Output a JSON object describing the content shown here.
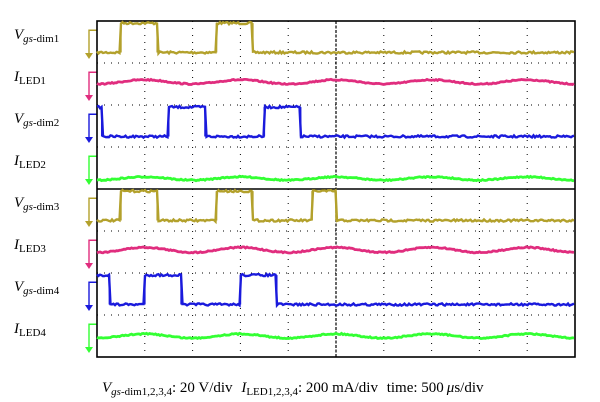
{
  "chart_data": {
    "type": "line",
    "display": "oscilloscope",
    "grid": true,
    "x_divisions": 10,
    "y_divisions": 8,
    "time_per_div": "500 μs/div",
    "caption": {
      "v_base": "V",
      "v_sub_italic": "gs",
      "v_sub_rest": "-dim1,2,3,4",
      "v_scale": ": 20 V/div",
      "i_base": "I",
      "i_sub": "LED1,2,3,4",
      "i_scale": ": 200 mA/div",
      "time": "time: 500",
      "time_mu": "μ",
      "time_unit": "s/div"
    },
    "channels": [
      {
        "label_base": "V",
        "label_sub_italic": "gs",
        "label_sub_rest": "-dim1",
        "kind": "gate",
        "color": "#b3a12c",
        "level_low_div": 0.25,
        "level_high_div": 0.95,
        "high_intervals_ms": [
          [
            0.25,
            0.63
          ],
          [
            1.25,
            1.63
          ]
        ]
      },
      {
        "label_base": "I",
        "label_sub_italic": "",
        "label_sub_rest": "LED1",
        "kind": "current",
        "color": "#e02d7e",
        "level_div": 0.55,
        "ripple_div": 0.05
      },
      {
        "label_base": "V",
        "label_sub_italic": "gs",
        "label_sub_rest": "-dim2",
        "kind": "gate",
        "color": "#1a1adc",
        "level_low_div": 0.25,
        "level_high_div": 0.95,
        "high_intervals_ms": [
          [
            0,
            0.05
          ],
          [
            0.75,
            1.13
          ],
          [
            1.75,
            2.13
          ]
        ]
      },
      {
        "label_base": "I",
        "label_sub_italic": "",
        "label_sub_rest": "LED2",
        "kind": "current",
        "color": "#33ff33",
        "level_div": 0.25,
        "ripple_div": 0.04
      },
      {
        "label_base": "V",
        "label_sub_italic": "gs",
        "label_sub_rest": "-dim3",
        "kind": "gate",
        "color": "#b3a12c",
        "level_low_div": 0.25,
        "level_high_div": 0.95,
        "high_intervals_ms": [
          [
            0.25,
            0.63
          ],
          [
            1.25,
            1.63
          ],
          [
            2.25,
            2.5
          ]
        ]
      },
      {
        "label_base": "I",
        "label_sub_italic": "",
        "label_sub_rest": "LED3",
        "kind": "current",
        "color": "#e02d7e",
        "level_div": 0.55,
        "ripple_div": 0.06
      },
      {
        "label_base": "V",
        "label_sub_italic": "gs",
        "label_sub_rest": "-dim4",
        "kind": "gate",
        "color": "#1a1adc",
        "level_low_div": 0.25,
        "level_high_div": 0.95,
        "high_intervals_ms": [
          [
            0,
            0.13
          ],
          [
            0.5,
            0.88
          ],
          [
            1.5,
            1.88
          ]
        ]
      },
      {
        "label_base": "I",
        "label_sub_italic": "",
        "label_sub_rest": "LED4",
        "kind": "current",
        "color": "#33ff33",
        "level_div": 0.5,
        "ripple_div": 0.05
      }
    ]
  }
}
